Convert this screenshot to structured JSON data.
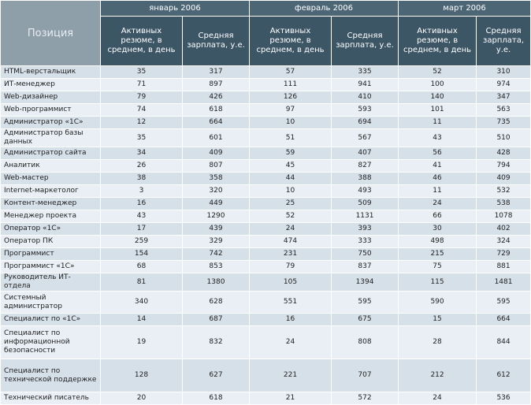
{
  "header": {
    "position": "Позиция",
    "months": [
      {
        "name": "январь 2006",
        "columns": [
          "Активных резюме, в среднем, в день",
          "Средняя зарплата, у.е."
        ]
      },
      {
        "name": "февраль 2006",
        "columns": [
          "Активных резюме, в среднем, в день",
          "Средняя зарплата, у.е."
        ]
      },
      {
        "name": "март 2006",
        "columns": [
          "Активных резюме, в среднем, в день",
          "Средняя зарплата, у.е."
        ]
      }
    ]
  },
  "table": {
    "rows": [
      [
        "HTML-верстальщик",
        35,
        317,
        57,
        335,
        52,
        310
      ],
      [
        "ИТ-менеджер",
        71,
        897,
        111,
        941,
        100,
        974
      ],
      [
        "Web-дизайнер",
        79,
        426,
        126,
        410,
        140,
        347
      ],
      [
        "Web-программист",
        74,
        618,
        97,
        593,
        101,
        563
      ],
      [
        "Администратор «1С»",
        12,
        664,
        10,
        694,
        11,
        735
      ],
      [
        "Администратор базы данных",
        35,
        601,
        51,
        567,
        43,
        510
      ],
      [
        "Администратор сайта",
        34,
        409,
        59,
        407,
        56,
        428
      ],
      [
        "Аналитик",
        26,
        807,
        45,
        827,
        41,
        794
      ],
      [
        "Web-мастер",
        38,
        358,
        44,
        388,
        46,
        409
      ],
      [
        "Internet-маркетолог",
        3,
        320,
        10,
        493,
        11,
        532
      ],
      [
        "Контент-менеджер",
        16,
        449,
        25,
        509,
        24,
        538
      ],
      [
        "Менеджер проекта",
        43,
        1290,
        52,
        1131,
        66,
        1078
      ],
      [
        "Оператор «1С»",
        17,
        439,
        24,
        393,
        30,
        402
      ],
      [
        "Оператор ПК",
        259,
        329,
        474,
        333,
        498,
        324
      ],
      [
        "Программист",
        154,
        742,
        231,
        750,
        215,
        729
      ],
      [
        "Программист «1С»",
        68,
        853,
        79,
        837,
        75,
        881
      ],
      [
        "Руководитель ИТ-отдела",
        81,
        1380,
        105,
        1394,
        115,
        1481
      ],
      [
        "Системный администратор",
        340,
        628,
        551,
        595,
        590,
        595
      ],
      [
        "Специалист по «1С»",
        14,
        687,
        16,
        675,
        15,
        664
      ],
      [
        "Специалист по информационной безопасности",
        19,
        832,
        24,
        808,
        28,
        844
      ],
      [
        "Специалист по технической поддержке",
        128,
        627,
        221,
        707,
        212,
        612
      ],
      [
        "Технический писатель",
        20,
        618,
        21,
        572,
        24,
        536
      ]
    ]
  }
}
